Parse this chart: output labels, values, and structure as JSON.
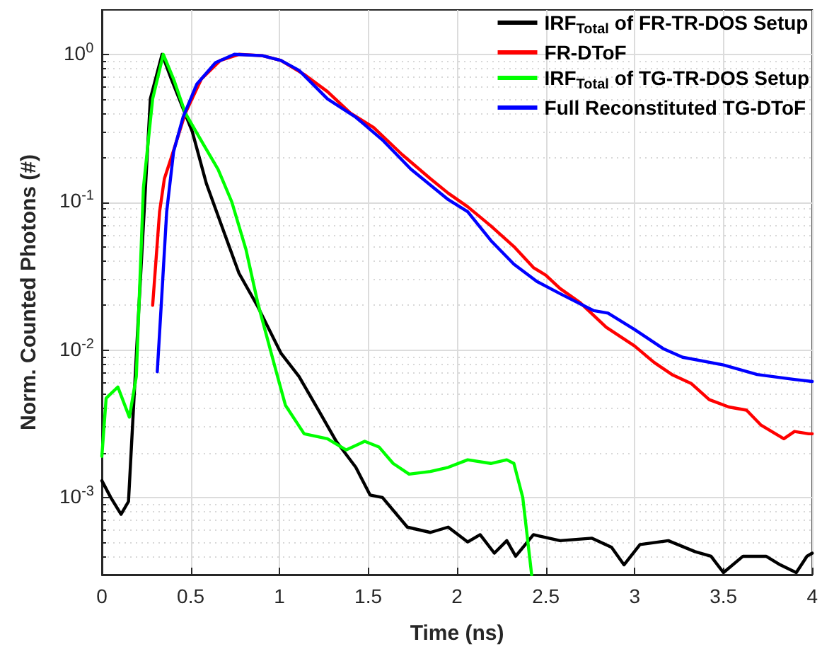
{
  "chart_data": {
    "type": "line",
    "xlabel": "Time (ns)",
    "ylabel": "Norm. Counted Photons (#)",
    "xlim": [
      0,
      4
    ],
    "xticks": [
      0,
      0.5,
      1,
      1.5,
      2,
      2.5,
      3,
      3.5,
      4
    ],
    "ylim": [
      0.0003,
      2
    ],
    "yticks": [
      {
        "value": 0.001,
        "label": "10$^{-3}$"
      },
      {
        "value": 0.01,
        "label": "10$^{-2}$"
      },
      {
        "value": 0.1,
        "label": "10$^{-1}$"
      },
      {
        "value": 1,
        "label": "10$^{0}$"
      }
    ],
    "log": "y",
    "grid": true,
    "legend": "top right",
    "line_style": "solid",
    "marker": "none",
    "series": [
      {
        "name": "IRF$_{Total}$ of FR-TR-DOS Setup",
        "color": "#000000",
        "x": [
          0,
          0.05,
          0.108,
          0.15,
          0.207,
          0.273,
          0.339,
          0.391,
          0.509,
          0.588,
          0.693,
          0.772,
          0.874,
          1.008,
          1.11,
          1.22,
          1.32,
          1.43,
          1.51,
          1.58,
          1.72,
          1.85,
          1.95,
          2.06,
          2.13,
          2.21,
          2.28,
          2.33,
          2.43,
          2.58,
          2.76,
          2.87,
          2.94,
          3.03,
          3.19,
          3.34,
          3.43,
          3.5,
          3.61,
          3.74,
          3.82,
          3.91,
          3.97,
          4.0
        ],
        "values": [
          0.0013,
          0.001,
          0.00077,
          0.00094,
          0.018,
          0.5,
          1.0,
          0.68,
          0.3,
          0.134,
          0.06,
          0.033,
          0.02,
          0.0095,
          0.0066,
          0.0039,
          0.0024,
          0.0016,
          0.00104,
          0.001,
          0.00063,
          0.00058,
          0.00063,
          0.0005,
          0.00056,
          0.00042,
          0.00051,
          0.0004,
          0.00056,
          0.00051,
          0.00053,
          0.00046,
          0.00035,
          0.00048,
          0.00051,
          0.00043,
          0.0004,
          0.00031,
          0.0004,
          0.0004,
          0.00035,
          0.00031,
          0.0004,
          0.00042
        ]
      },
      {
        "name": "FR-DToF",
        "color": "#ff0000",
        "x": [
          0.286,
          0.325,
          0.352,
          0.404,
          0.47,
          0.56,
          0.667,
          0.772,
          0.903,
          1.008,
          1.14,
          1.27,
          1.4,
          1.53,
          1.69,
          1.85,
          1.95,
          2.06,
          2.19,
          2.32,
          2.43,
          2.5,
          2.58,
          2.69,
          2.84,
          3.0,
          3.11,
          3.21,
          3.32,
          3.42,
          3.53,
          3.63,
          3.71,
          3.84,
          3.9,
          3.98,
          4.0
        ],
        "values": [
          0.02,
          0.086,
          0.144,
          0.224,
          0.4,
          0.68,
          0.91,
          1.0,
          0.98,
          0.91,
          0.73,
          0.56,
          0.4,
          0.32,
          0.21,
          0.144,
          0.115,
          0.093,
          0.069,
          0.05,
          0.036,
          0.032,
          0.026,
          0.021,
          0.0142,
          0.0106,
          0.0082,
          0.0068,
          0.0059,
          0.0046,
          0.0041,
          0.0039,
          0.0031,
          0.0025,
          0.0028,
          0.0027,
          0.0027
        ]
      },
      {
        "name": "IRF$_{Total}$ of TG-TR-DOS Setup",
        "color": "#00ff00",
        "x": [
          0,
          0.024,
          0.09,
          0.155,
          0.194,
          0.234,
          0.286,
          0.346,
          0.404,
          0.47,
          0.56,
          0.654,
          0.732,
          0.811,
          0.877,
          0.903,
          0.982,
          1.034,
          1.139,
          1.27,
          1.375,
          1.48,
          1.56,
          1.64,
          1.73,
          1.85,
          1.95,
          2.06,
          2.19,
          2.28,
          2.32,
          2.37,
          2.42
        ],
        "values": [
          0.0019,
          0.0047,
          0.0056,
          0.0035,
          0.0066,
          0.125,
          0.5,
          1.0,
          0.68,
          0.4,
          0.26,
          0.167,
          0.1,
          0.048,
          0.021,
          0.016,
          0.0071,
          0.0042,
          0.0027,
          0.0025,
          0.0021,
          0.0024,
          0.0022,
          0.0017,
          0.00144,
          0.0015,
          0.0016,
          0.0018,
          0.0017,
          0.0018,
          0.0017,
          0.001,
          0.0003
        ]
      },
      {
        "name": "Full Reconstituted TG-DToF",
        "color": "#0000ff",
        "x": [
          0.312,
          0.339,
          0.365,
          0.404,
          0.457,
          0.535,
          0.64,
          0.746,
          0.903,
          1.008,
          1.11,
          1.27,
          1.43,
          1.585,
          1.74,
          1.95,
          2.06,
          2.19,
          2.32,
          2.45,
          2.58,
          2.77,
          2.85,
          3.0,
          3.16,
          3.27,
          3.5,
          3.69,
          3.9,
          4.0
        ],
        "values": [
          0.0071,
          0.025,
          0.086,
          0.22,
          0.375,
          0.63,
          0.88,
          1.0,
          0.98,
          0.91,
          0.78,
          0.5,
          0.375,
          0.26,
          0.167,
          0.104,
          0.086,
          0.055,
          0.038,
          0.029,
          0.024,
          0.0184,
          0.0177,
          0.0137,
          0.0102,
          0.0089,
          0.0079,
          0.0068,
          0.0063,
          0.0061
        ]
      }
    ]
  }
}
